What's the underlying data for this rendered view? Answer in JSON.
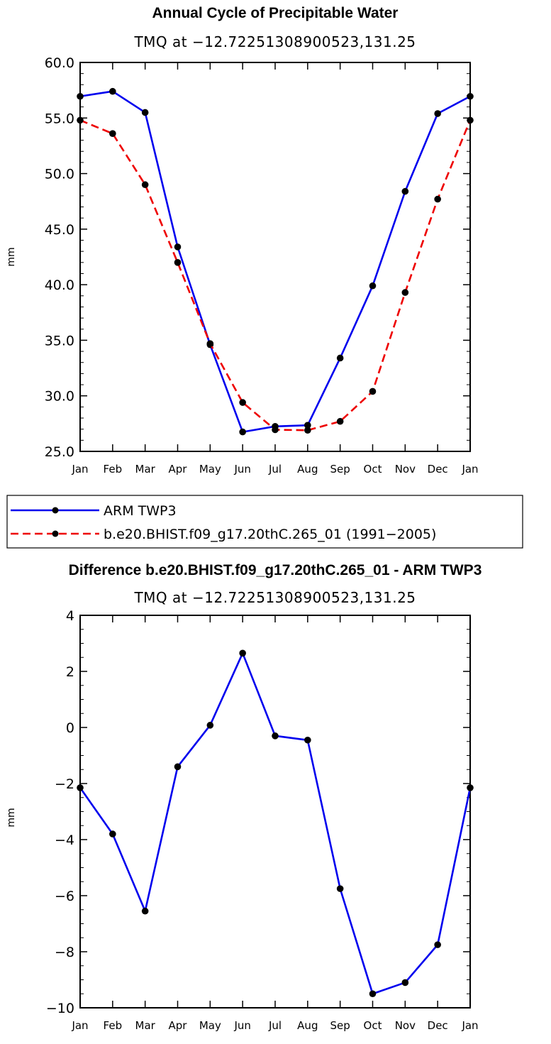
{
  "chart_data": [
    {
      "type": "line",
      "title": "Annual Cycle of Precipitable Water",
      "subtitle": "TMQ at −12.72251308900523,131.25",
      "xlabel": "",
      "ylabel": "mm",
      "categories": [
        "Jan",
        "Feb",
        "Mar",
        "Apr",
        "May",
        "Jun",
        "Jul",
        "Aug",
        "Sep",
        "Oct",
        "Nov",
        "Dec",
        "Jan"
      ],
      "ylim": [
        25.0,
        60.0
      ],
      "yticks": [
        "25.0",
        "30.0",
        "35.0",
        "40.0",
        "45.0",
        "50.0",
        "55.0",
        "60.0"
      ],
      "series": [
        {
          "name": "ARM TWP3",
          "color": "#0000ee",
          "style": "solid",
          "values": [
            56.95,
            57.4,
            55.5,
            43.4,
            34.6,
            26.75,
            27.25,
            27.35,
            33.4,
            39.9,
            48.4,
            55.4,
            56.95
          ]
        },
        {
          "name": "b.e20.BHIST.f09_g17.20thC.265_01 (1991−2005)",
          "color": "#ee0000",
          "style": "dashed",
          "values": [
            54.8,
            53.6,
            49.0,
            42.0,
            34.7,
            29.4,
            26.95,
            26.9,
            27.7,
            30.4,
            39.3,
            47.7,
            54.8
          ]
        }
      ]
    },
    {
      "type": "line",
      "title": "Difference b.e20.BHIST.f09_g17.20thC.265_01 - ARM TWP3",
      "subtitle": "TMQ at −12.72251308900523,131.25",
      "xlabel": "",
      "ylabel": "mm",
      "categories": [
        "Jan",
        "Feb",
        "Mar",
        "Apr",
        "May",
        "Jun",
        "Jul",
        "Aug",
        "Sep",
        "Oct",
        "Nov",
        "Dec",
        "Jan"
      ],
      "ylim": [
        -10,
        4
      ],
      "yticks": [
        "−10",
        "−8",
        "−6",
        "−4",
        "−2",
        "0",
        "2",
        "4"
      ],
      "series": [
        {
          "name": "Difference",
          "color": "#0000ee",
          "style": "solid",
          "values": [
            -2.15,
            -3.8,
            -6.55,
            -1.4,
            0.08,
            2.65,
            -0.3,
            -0.45,
            -5.75,
            -9.5,
            -9.1,
            -7.75,
            -2.15
          ]
        }
      ]
    }
  ]
}
